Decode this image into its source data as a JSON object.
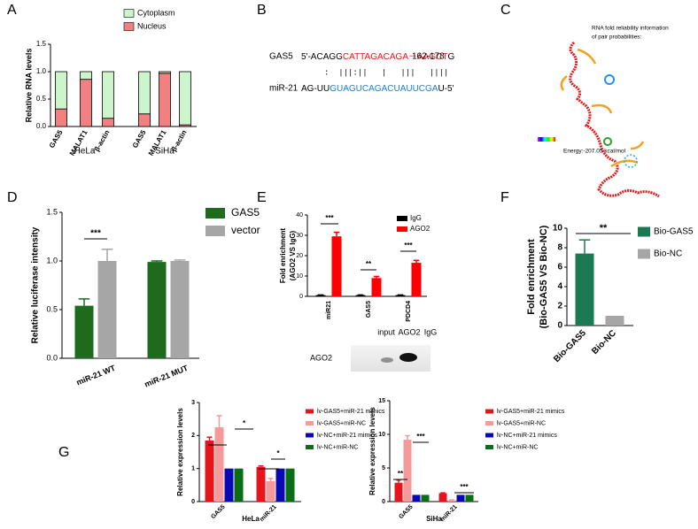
{
  "panel_labels": [
    "A",
    "B",
    "C",
    "D",
    "E",
    "F",
    "G"
  ],
  "alignment": {
    "gas5": {
      "name": "GAS5",
      "segments": [
        "5'-ACAGG",
        "CATTAGACAGA－AAGCT",
        "G"
      ],
      "range": "162-178"
    },
    "pairing": ":  |||:||   |   |||   ||||",
    "mir21": {
      "name": "miR-21",
      "segments": [
        "AG-UU",
        "GUAGUCAGACUAUUCGA",
        "U-5'"
      ]
    }
  },
  "rna_fold": {
    "caption": [
      "RNA fold reliability information",
      "of pair probabilities:"
    ],
    "energy": "Energy:-207.05 kcal/mol"
  },
  "western_blot": {
    "lanes": [
      "input",
      "AGO2",
      "IgG"
    ],
    "row": "AGO2"
  },
  "chart_data": [
    {
      "type": "bar",
      "stacked": true,
      "categories": [
        "GAS5",
        "MALAT1",
        "β-actin",
        "GAS5",
        "MALAT1",
        "β-actin"
      ],
      "groups": [
        "HeLa",
        "SiHa"
      ],
      "series": [
        {
          "name": "Nucleus",
          "color": "#f28080",
          "values": [
            0.32,
            0.86,
            0.15,
            0.23,
            0.97,
            0.03
          ]
        },
        {
          "name": "Cytoplasm",
          "color": "#ccf5cc",
          "values": [
            0.68,
            0.14,
            0.85,
            0.77,
            0.03,
            0.97
          ]
        }
      ],
      "ylabel": "Relative RNA levels",
      "ylim": [
        0,
        1.5
      ],
      "yticks": [
        {
          "value": 0,
          "label": "0.0"
        },
        {
          "value": 0.5,
          "label": "0.5"
        },
        {
          "value": 1,
          "label": "1.0"
        },
        {
          "value": 1.5,
          "label": "1.5"
        }
      ]
    },
    {
      "type": "bar",
      "categories": [
        "miR-21 WT",
        "miR-21 MUT"
      ],
      "series": [
        {
          "name": "GAS5",
          "color": "#1e6b1e",
          "values": [
            0.54,
            0.99
          ],
          "errors": [
            0.07,
            0.01
          ]
        },
        {
          "name": "vector",
          "color": "#a6a6a6",
          "values": [
            1.0,
            1.0
          ],
          "errors": [
            0.12,
            0.01
          ]
        }
      ],
      "ylabel": "Relative luciferase intensity",
      "ylim": [
        0,
        1.5
      ],
      "yticks": [
        {
          "value": 0,
          "label": "0.0"
        },
        {
          "value": 0.5,
          "label": "0.5"
        },
        {
          "value": 1,
          "label": "1.0"
        },
        {
          "value": 1.5,
          "label": "1.5"
        }
      ],
      "annotations": [
        "***"
      ]
    },
    {
      "type": "bar",
      "categories": [
        "miR21",
        "GAS5",
        "PDCD4"
      ],
      "series": [
        {
          "name": "IgG",
          "color": "#000000",
          "values": [
            0.6,
            0.6,
            0.6
          ],
          "errors": [
            0.1,
            0.1,
            0.1
          ]
        },
        {
          "name": "AGO2",
          "color": "#ff0000",
          "values": [
            29.5,
            9,
            16.5
          ],
          "errors": [
            2,
            0.8,
            1.2
          ]
        }
      ],
      "ylabel": [
        "Fold enrichment",
        "(AGO2 VS IgG)"
      ],
      "ylim": [
        0,
        40
      ],
      "yticks": [
        0,
        10,
        20,
        30,
        40
      ],
      "annotations": [
        "***",
        "**",
        "***"
      ]
    },
    {
      "type": "bar",
      "categories": [
        "Bio-GAS5",
        "Bio-NC"
      ],
      "values": [
        7.4,
        1.0
      ],
      "errors": [
        1.4,
        0
      ],
      "colors": [
        "#1b7a52",
        "#a6a6a6"
      ],
      "ylabel": [
        "Fold enrichment",
        "(Bio-GAS5 VS Bio-NC)"
      ],
      "ylim": [
        0,
        10
      ],
      "yticks": [
        0,
        2,
        4,
        6,
        8,
        10
      ],
      "annotations": [
        "**"
      ]
    },
    {
      "type": "bar",
      "categories": [
        "GAS5",
        "miR-21"
      ],
      "xlabel": "HeLa",
      "series": [
        {
          "name": "lv-GAS5+miR-21 mimics",
          "color": "#e8141a",
          "values": [
            1.85,
            1.05
          ],
          "errors": [
            0.1,
            0.03
          ]
        },
        {
          "name": "lv-GAS5+miR-NC",
          "color": "#f59a9a",
          "values": [
            2.25,
            0.62
          ],
          "errors": [
            0.35,
            0.08
          ]
        },
        {
          "name": "lv-NC+miR-21 mimics",
          "color": "#0a0ab4",
          "values": [
            1.0,
            1.0
          ],
          "errors": [
            0,
            0
          ]
        },
        {
          "name": "lv-NC+miR-NC",
          "color": "#0a6e14",
          "values": [
            1.0,
            1.0
          ],
          "errors": [
            0,
            0
          ]
        }
      ],
      "ylabel": "Relative expression levels",
      "ylim": [
        0,
        3
      ],
      "yticks": [
        0,
        1,
        2,
        3
      ],
      "annotations": [
        "*",
        "*"
      ]
    },
    {
      "type": "bar",
      "categories": [
        "GAS5",
        "miR-21"
      ],
      "xlabel": "SiHa",
      "series": [
        {
          "name": "lv-GAS5+miR-21 mimics",
          "color": "#e8141a",
          "values": [
            2.8,
            1.25
          ],
          "errors": [
            0.4,
            0.05
          ]
        },
        {
          "name": "lv-GAS5+miR-NC",
          "color": "#f59a9a",
          "values": [
            9.2,
            0.2
          ],
          "errors": [
            0.6,
            0.05
          ]
        },
        {
          "name": "lv-NC+miR-21 mimics",
          "color": "#0a0ab4",
          "values": [
            1.0,
            1.0
          ],
          "errors": [
            0,
            0
          ]
        },
        {
          "name": "lv-NC+miR-NC",
          "color": "#0a6e14",
          "values": [
            1.0,
            1.0
          ],
          "errors": [
            0,
            0
          ]
        }
      ],
      "ylabel": "Relative expression levels",
      "ylim": [
        0,
        15
      ],
      "yticks": [
        0,
        5,
        10,
        15
      ],
      "annotations": [
        "**",
        "***",
        "***"
      ]
    }
  ]
}
